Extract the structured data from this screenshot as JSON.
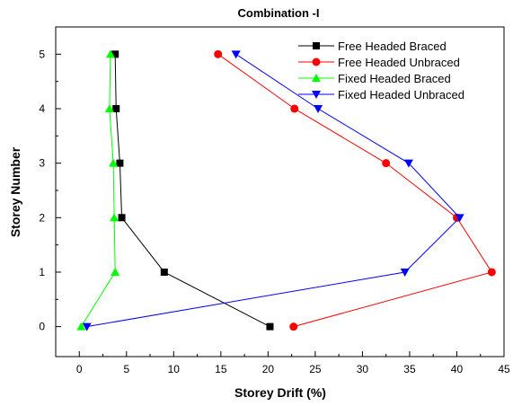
{
  "chart_data": {
    "type": "line",
    "title": "Combination -I",
    "xlabel": "Storey Drift (%)",
    "ylabel": "Storey Number",
    "xlim": [
      -2.5,
      45
    ],
    "ylim": [
      -0.55,
      5.5
    ],
    "x_ticks": [
      "0",
      "5",
      "10",
      "15",
      "20",
      "25",
      "30",
      "35",
      "40",
      "45"
    ],
    "y_ticks": [
      "0",
      "1",
      "2",
      "3",
      "4",
      "5"
    ],
    "grid": false,
    "legend_position": "top-right",
    "series": [
      {
        "name": "Free Headed Braced",
        "color": "#000000",
        "marker": "square",
        "points": [
          [
            20.2,
            0
          ],
          [
            9.0,
            1
          ],
          [
            4.5,
            2
          ],
          [
            4.3,
            3
          ],
          [
            3.9,
            4
          ],
          [
            3.8,
            5
          ]
        ]
      },
      {
        "name": "Free Headed Unbraced",
        "color": "#ff0000",
        "marker": "circle",
        "points": [
          [
            22.7,
            0
          ],
          [
            43.7,
            1
          ],
          [
            40.0,
            2
          ],
          [
            32.5,
            3
          ],
          [
            22.8,
            4
          ],
          [
            14.7,
            5
          ]
        ]
      },
      {
        "name": "Fixed Headed Braced",
        "color": "#00ff00",
        "marker": "triangle-up",
        "points": [
          [
            0.2,
            0
          ],
          [
            3.8,
            1
          ],
          [
            3.7,
            2
          ],
          [
            3.6,
            3
          ],
          [
            3.2,
            4
          ],
          [
            3.3,
            5
          ]
        ]
      },
      {
        "name": "Fixed Headed Unbraced",
        "color": "#0000ff",
        "marker": "triangle-down",
        "points": [
          [
            0.8,
            0
          ],
          [
            34.5,
            1
          ],
          [
            40.3,
            2
          ],
          [
            34.9,
            3
          ],
          [
            25.3,
            4
          ],
          [
            16.6,
            5
          ]
        ]
      }
    ]
  }
}
